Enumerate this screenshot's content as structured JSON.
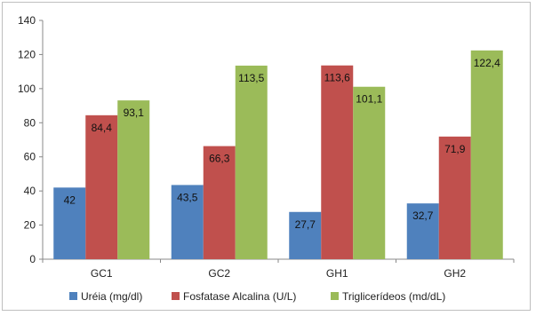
{
  "chart_data": {
    "type": "bar",
    "title": "",
    "xlabel": "",
    "ylabel": "",
    "ylim": [
      0,
      140
    ],
    "yticks": [
      0,
      20,
      40,
      60,
      80,
      100,
      120,
      140
    ],
    "grid": false,
    "legend_position": "bottom",
    "categories": [
      "GC1",
      "GC2",
      "GH1",
      "GH2"
    ],
    "series": [
      {
        "name": "Uréia (mg/dl)",
        "color": "#4f81bd",
        "values": [
          42,
          43.5,
          27.7,
          32.7
        ],
        "labels": [
          "42",
          "43,5",
          "27,7",
          "32,7"
        ]
      },
      {
        "name": "Fosfatase Alcalina (U/L)",
        "color": "#c0504d",
        "values": [
          84.4,
          66.3,
          113.6,
          71.9
        ],
        "labels": [
          "84,4",
          "66,3",
          "113,6",
          "71,9"
        ]
      },
      {
        "name": "Triglicerídeos (md/dL)",
        "color": "#9bbb59",
        "values": [
          93.1,
          113.5,
          101.1,
          122.4
        ],
        "labels": [
          "93,1",
          "113,5",
          "101,1",
          "122,4"
        ]
      }
    ]
  }
}
